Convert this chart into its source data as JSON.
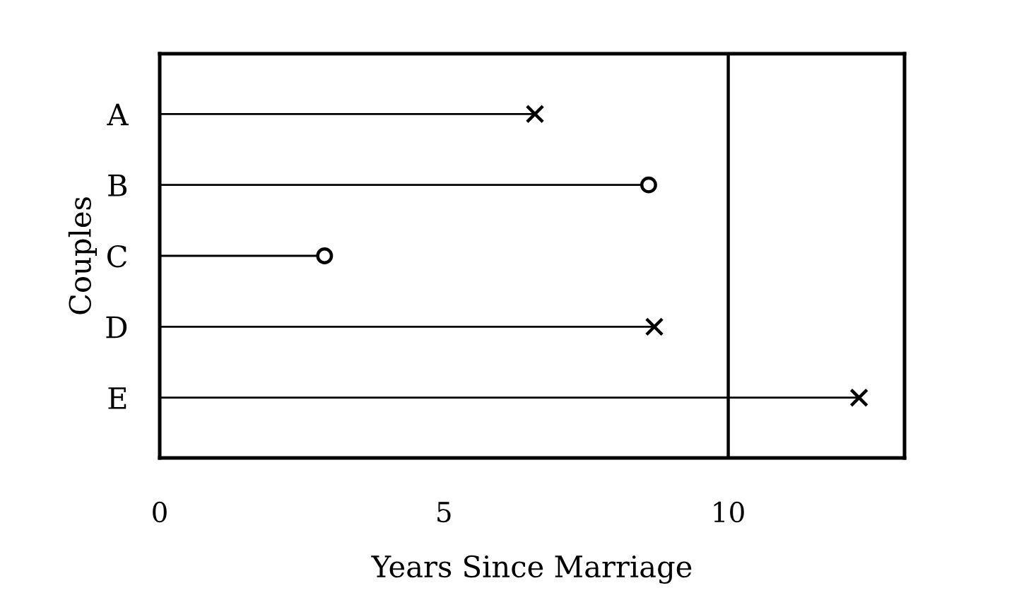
{
  "chart_data": {
    "type": "lollipop",
    "orientation": "horizontal",
    "xlabel": "Years Since Marriage",
    "ylabel": "Couples",
    "categories": [
      "A",
      "B",
      "C",
      "D",
      "E"
    ],
    "series": [
      {
        "color": "#000000",
        "marker": "cross",
        "values": [
          6.6,
          null,
          null,
          8.7,
          12.3
        ]
      },
      {
        "color": "#000000",
        "marker": "circle",
        "values": [
          null,
          8.6,
          2.9,
          null,
          null
        ]
      }
    ],
    "xlim": [
      0,
      13.1
    ],
    "xticks": [
      0,
      5,
      10
    ],
    "ref_lines": [
      {
        "axis": "x",
        "value": 10,
        "color": "#000000"
      }
    ],
    "grid": false,
    "legend": false
  }
}
